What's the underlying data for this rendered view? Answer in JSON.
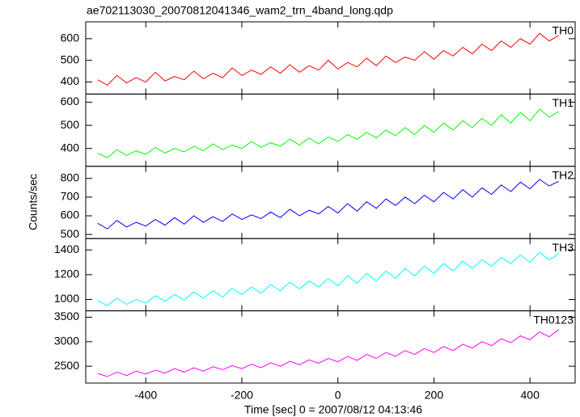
{
  "chart_data": [
    {
      "type": "line",
      "title": "ae702113030_20070812041346_wam2_trn_4band_long.qdp",
      "x": [
        -500,
        -480,
        -460,
        -440,
        -420,
        -400,
        -380,
        -360,
        -340,
        -320,
        -300,
        -280,
        -260,
        -240,
        -220,
        -200,
        -180,
        -160,
        -140,
        -120,
        -100,
        -80,
        -60,
        -40,
        -20,
        0,
        20,
        40,
        60,
        80,
        100,
        120,
        140,
        160,
        180,
        200,
        220,
        240,
        260,
        280,
        300,
        320,
        340,
        360,
        380,
        400,
        420,
        440,
        460
      ],
      "series": [
        {
          "name": "TH0",
          "color": "#ff0000",
          "values": [
            410,
            385,
            430,
            395,
            420,
            400,
            445,
            405,
            425,
            410,
            450,
            415,
            440,
            420,
            465,
            430,
            455,
            435,
            470,
            440,
            480,
            445,
            475,
            455,
            500,
            460,
            490,
            470,
            510,
            475,
            520,
            490,
            515,
            500,
            540,
            505,
            545,
            520,
            560,
            530,
            575,
            545,
            590,
            560,
            600,
            575,
            625,
            590,
            615
          ]
        }
      ],
      "xlim": [
        -525,
        494
      ],
      "xticks": [
        -400,
        -200,
        0,
        200,
        400
      ],
      "ylim": [
        344,
        678
      ],
      "yticks": [
        400,
        500,
        600
      ]
    },
    {
      "type": "line",
      "x": [
        -500,
        -480,
        -460,
        -440,
        -420,
        -400,
        -380,
        -360,
        -340,
        -320,
        -300,
        -280,
        -260,
        -240,
        -220,
        -200,
        -180,
        -160,
        -140,
        -120,
        -100,
        -80,
        -60,
        -40,
        -20,
        0,
        20,
        40,
        60,
        80,
        100,
        120,
        140,
        160,
        180,
        200,
        220,
        240,
        260,
        280,
        300,
        320,
        340,
        360,
        380,
        400,
        420,
        440,
        460
      ],
      "series": [
        {
          "name": "TH1",
          "color": "#00ff00",
          "values": [
            380,
            360,
            395,
            370,
            390,
            375,
            405,
            380,
            400,
            385,
            410,
            390,
            420,
            395,
            415,
            400,
            430,
            405,
            425,
            410,
            440,
            415,
            445,
            420,
            450,
            430,
            460,
            440,
            470,
            445,
            480,
            455,
            490,
            460,
            500,
            470,
            510,
            480,
            520,
            490,
            530,
            500,
            545,
            510,
            555,
            520,
            570,
            535,
            560
          ]
        }
      ],
      "xlim": [
        -525,
        494
      ],
      "xticks": [
        -400,
        -200,
        0,
        200,
        400
      ],
      "ylim": [
        323,
        635
      ],
      "yticks": [
        400,
        500,
        600
      ]
    },
    {
      "type": "line",
      "ylabel": "Counts/sec",
      "x": [
        -500,
        -480,
        -460,
        -440,
        -420,
        -400,
        -380,
        -360,
        -340,
        -320,
        -300,
        -280,
        -260,
        -240,
        -220,
        -200,
        -180,
        -160,
        -140,
        -120,
        -100,
        -80,
        -60,
        -40,
        -20,
        0,
        20,
        40,
        60,
        80,
        100,
        120,
        140,
        160,
        180,
        200,
        220,
        240,
        260,
        280,
        300,
        320,
        340,
        360,
        380,
        400,
        420,
        440,
        460
      ],
      "series": [
        {
          "name": "TH2",
          "color": "#0000ff",
          "values": [
            560,
            530,
            575,
            540,
            565,
            545,
            580,
            550,
            590,
            555,
            600,
            565,
            595,
            570,
            610,
            580,
            605,
            585,
            620,
            590,
            635,
            600,
            630,
            610,
            650,
            615,
            665,
            625,
            675,
            640,
            690,
            655,
            700,
            665,
            710,
            675,
            725,
            690,
            740,
            700,
            750,
            715,
            765,
            730,
            780,
            745,
            795,
            760,
            785
          ]
        }
      ],
      "xlim": [
        -525,
        494
      ],
      "xticks": [
        -400,
        -200,
        0,
        200,
        400
      ],
      "ylim": [
        478,
        865
      ],
      "yticks": [
        500,
        600,
        700,
        800
      ]
    },
    {
      "type": "line",
      "x": [
        -500,
        -480,
        -460,
        -440,
        -420,
        -400,
        -380,
        -360,
        -340,
        -320,
        -300,
        -280,
        -260,
        -240,
        -220,
        -200,
        -180,
        -160,
        -140,
        -120,
        -100,
        -80,
        -60,
        -40,
        -20,
        0,
        20,
        40,
        60,
        80,
        100,
        120,
        140,
        160,
        180,
        200,
        220,
        240,
        260,
        280,
        300,
        320,
        340,
        360,
        380,
        400,
        420,
        440,
        460
      ],
      "series": [
        {
          "name": "TH3",
          "color": "#00ffff",
          "values": [
            990,
            950,
            1010,
            960,
            1000,
            970,
            1030,
            985,
            1040,
            995,
            1060,
            1010,
            1070,
            1020,
            1090,
            1040,
            1100,
            1050,
            1120,
            1070,
            1140,
            1085,
            1150,
            1100,
            1170,
            1110,
            1190,
            1130,
            1210,
            1150,
            1230,
            1170,
            1250,
            1190,
            1270,
            1210,
            1290,
            1230,
            1310,
            1250,
            1320,
            1270,
            1340,
            1290,
            1360,
            1300,
            1380,
            1320,
            1370
          ]
        }
      ],
      "xlim": [
        -525,
        494
      ],
      "xticks": [
        -400,
        -200,
        0,
        200,
        400
      ],
      "ylim": [
        908,
        1492
      ],
      "yticks": [
        1000,
        1200,
        1400
      ]
    },
    {
      "type": "line",
      "xlabel": "Time [sec] 0 = 2007/08/12 04:13:46",
      "x": [
        -500,
        -480,
        -460,
        -440,
        -420,
        -400,
        -380,
        -360,
        -340,
        -320,
        -300,
        -280,
        -260,
        -240,
        -220,
        -200,
        -180,
        -160,
        -140,
        -120,
        -100,
        -80,
        -60,
        -40,
        -20,
        0,
        20,
        40,
        60,
        80,
        100,
        120,
        140,
        160,
        180,
        200,
        220,
        240,
        260,
        280,
        300,
        320,
        340,
        360,
        380,
        400,
        420,
        440,
        460
      ],
      "series": [
        {
          "name": "TH0123",
          "color": "#ff00ff",
          "values": [
            2350,
            2290,
            2380,
            2310,
            2400,
            2340,
            2420,
            2360,
            2450,
            2380,
            2470,
            2400,
            2490,
            2430,
            2510,
            2450,
            2540,
            2470,
            2570,
            2500,
            2600,
            2530,
            2630,
            2560,
            2660,
            2590,
            2700,
            2620,
            2740,
            2660,
            2780,
            2700,
            2820,
            2740,
            2860,
            2780,
            2900,
            2820,
            2950,
            2870,
            3000,
            2920,
            3060,
            2980,
            3120,
            3040,
            3200,
            3100,
            3250
          ]
        }
      ],
      "xlim": [
        -525,
        494
      ],
      "xticks": [
        -400,
        -200,
        0,
        200,
        400
      ],
      "ylim": [
        2156,
        3631
      ],
      "yticks": [
        2500,
        3000,
        3500
      ]
    }
  ]
}
